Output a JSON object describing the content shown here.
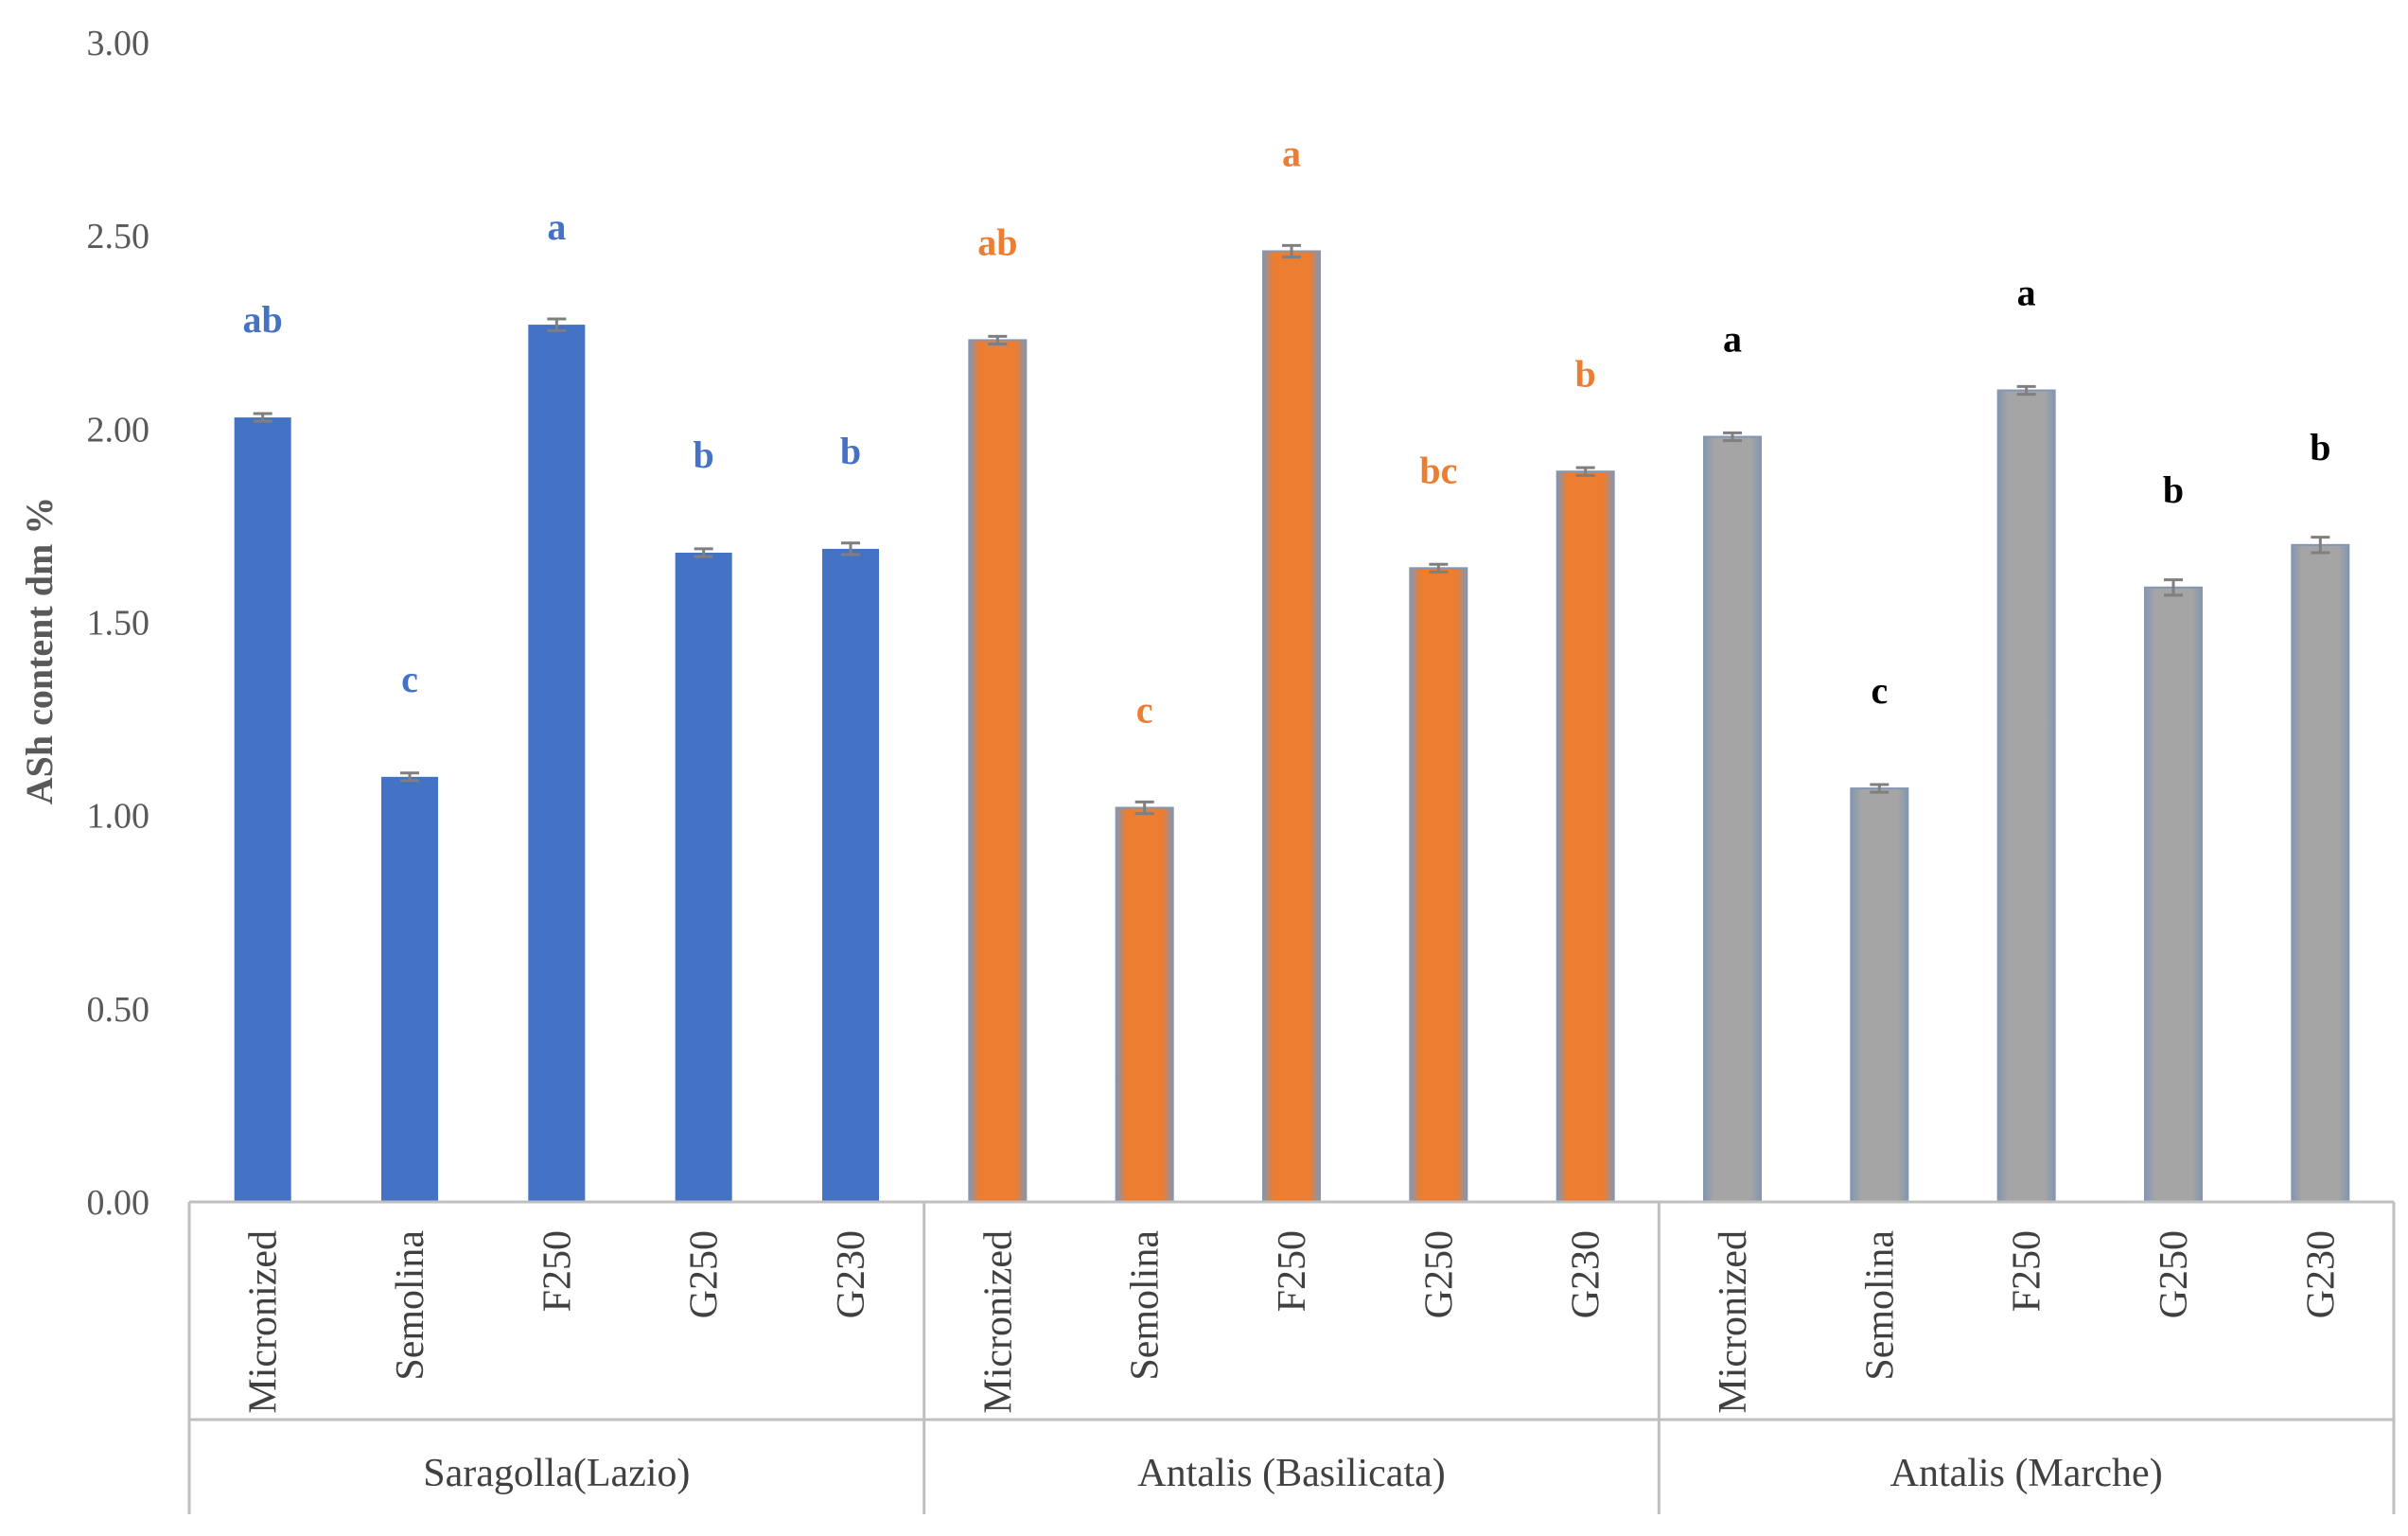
{
  "chart_data": {
    "type": "bar",
    "ylabel": "ASh content  dm %",
    "ylim": [
      0,
      3
    ],
    "yticks": [
      "0.00",
      "0.50",
      "1.00",
      "1.50",
      "2.00",
      "2.50",
      "3.00"
    ],
    "grid": false,
    "legend": "none",
    "groups": [
      {
        "name": "Saragolla(Lazio)",
        "color": "#4472C4",
        "label_color": "#4472C4",
        "gradient": false,
        "categories": [
          "Micronized",
          "Semolina",
          "F250",
          "G250",
          "G230"
        ],
        "values": [
          2.03,
          1.1,
          2.27,
          1.68,
          1.69
        ],
        "errors": [
          0.01,
          0.01,
          0.015,
          0.01,
          0.015
        ],
        "significance": [
          "ab",
          "c",
          "a",
          "b",
          "b"
        ]
      },
      {
        "name": "Antalis (Basilicata)",
        "color": "#ED7D31",
        "label_color": "#ED7D31",
        "gradient": true,
        "categories": [
          "Micronized",
          "Semolina",
          "F250",
          "G250",
          "G230"
        ],
        "values": [
          2.23,
          1.02,
          2.46,
          1.64,
          1.89
        ],
        "errors": [
          0.01,
          0.015,
          0.015,
          0.01,
          0.01
        ],
        "significance": [
          "ab",
          "c",
          "a",
          "bc",
          "b"
        ]
      },
      {
        "name": "Antalis (Marche)",
        "color": "#A5A5A5",
        "label_color": "#000000",
        "gradient": true,
        "categories": [
          "Micronized",
          "Semolina",
          "F250",
          "G250",
          "G230"
        ],
        "values": [
          1.98,
          1.07,
          2.1,
          1.59,
          1.7
        ],
        "errors": [
          0.01,
          0.01,
          0.01,
          0.02,
          0.02
        ],
        "significance": [
          "a",
          "c",
          "a",
          "b",
          "b"
        ]
      }
    ]
  }
}
